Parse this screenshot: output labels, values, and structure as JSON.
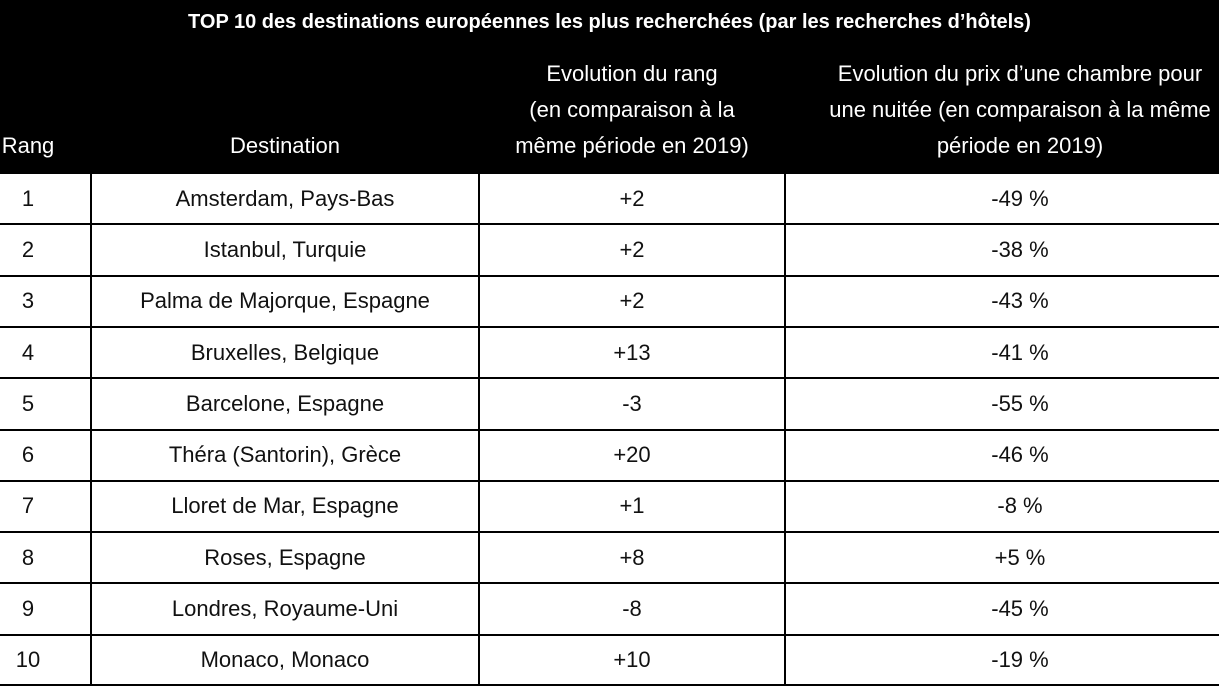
{
  "title": "TOP 10 des destinations européennes les plus recherchées (par les recherches d’hôtels)",
  "table": {
    "header": [
      "Rang",
      "Destination",
      "Evolution du rang\n(en comparaison à la\nmême période en 2019)",
      "Evolution du prix d’une chambre pour\nune nuitée (en comparaison à la même\npériode en 2019)"
    ],
    "rows": [
      [
        "1",
        "Amsterdam, Pays-Bas",
        "+2",
        "-49 %"
      ],
      [
        "2",
        "Istanbul, Turquie",
        "+2",
        "-38 %"
      ],
      [
        "3",
        "Palma de Majorque, Espagne",
        "+2",
        "-43 %"
      ],
      [
        "4",
        "Bruxelles, Belgique",
        "+13",
        "-41 %"
      ],
      [
        "5",
        "Barcelone, Espagne",
        "-3",
        "-55 %"
      ],
      [
        "6",
        "Théra (Santorin), Grèce",
        "+20",
        "-46 %"
      ],
      [
        "7",
        "Lloret de Mar, Espagne",
        "+1",
        "-8 %"
      ],
      [
        "8",
        "Roses, Espagne",
        "+8",
        "+5 %"
      ],
      [
        "9",
        "Londres, Royaume-Uni",
        "-8",
        "-45 %"
      ],
      [
        "10",
        "Monaco, Monaco",
        "+10",
        "-19 %"
      ]
    ]
  }
}
